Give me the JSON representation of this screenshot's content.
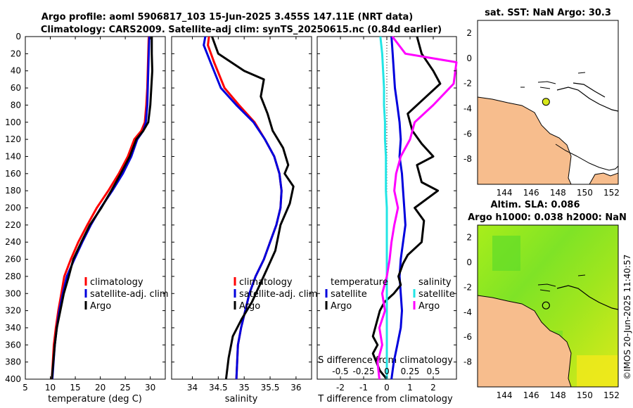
{
  "header": {
    "title_line1": "Argo profile: aoml 5906817_103 15-Jun-2025 3.455S 147.11E (NRT data)",
    "title_line2": "Climatology: CARS2009. Satellite-adj clim: synTS_20250615.nc (0.84d earlier)"
  },
  "credit": "©IMOS 20-Jun-2025 11:40:57",
  "colors": {
    "red": "#ff0000",
    "blue": "#0000dd",
    "black": "#000000",
    "cyan": "#22e5e5",
    "magenta": "#ff00ff",
    "land": "#f7bd8d",
    "sea_map": "#ffffff"
  },
  "chart_data": [
    {
      "type": "line",
      "name": "temperature",
      "xlabel": "temperature (deg C)",
      "ylabel": "",
      "xlim": [
        5,
        33
      ],
      "ylim": [
        400,
        0
      ],
      "xticks": [
        5,
        10,
        15,
        20,
        25,
        30
      ],
      "yticks": [
        0,
        20,
        40,
        60,
        80,
        100,
        120,
        140,
        160,
        180,
        200,
        220,
        240,
        260,
        280,
        300,
        320,
        340,
        360,
        380,
        400
      ],
      "legend": [
        "climatology",
        "satellite-adj. clim",
        "Argo"
      ],
      "series": [
        {
          "name": "climatology",
          "color": "red",
          "x": [
            29.7,
            29.6,
            29.5,
            29.4,
            29.2,
            28.9,
            28.2,
            26.8,
            25.5,
            23.7,
            21.6,
            19.3,
            17.4,
            15.6,
            14.1,
            12.8,
            12.2,
            11.6,
            11.1,
            10.7,
            10.3
          ],
          "y": [
            0,
            20,
            40,
            60,
            80,
            100,
            110,
            120,
            140,
            160,
            180,
            200,
            220,
            240,
            260,
            280,
            300,
            320,
            340,
            360,
            400
          ]
        },
        {
          "name": "satellite-adj. clim",
          "color": "blue",
          "x": [
            29.8,
            29.7,
            29.6,
            29.5,
            29.4,
            29.1,
            28.6,
            27.4,
            26.2,
            24.5,
            22.4,
            20.1,
            18.1,
            16.4,
            14.8,
            13.3,
            12.5,
            11.8,
            11.3,
            10.9,
            10.4
          ],
          "y": [
            0,
            20,
            40,
            60,
            80,
            100,
            110,
            120,
            140,
            160,
            180,
            200,
            220,
            240,
            260,
            280,
            300,
            320,
            340,
            360,
            400
          ]
        },
        {
          "name": "Argo",
          "color": "black",
          "x": [
            30.3,
            30.3,
            30.4,
            30.2,
            30.0,
            29.6,
            28.6,
            27.2,
            25.9,
            24.1,
            22.2,
            20.2,
            17.9,
            16.2,
            14.6,
            13.7,
            12.7,
            12.0,
            11.3,
            10.9,
            10.3
          ],
          "y": [
            0,
            20,
            40,
            60,
            80,
            100,
            110,
            120,
            140,
            160,
            180,
            200,
            220,
            240,
            260,
            280,
            300,
            320,
            340,
            360,
            400
          ]
        }
      ]
    },
    {
      "type": "line",
      "name": "salinity",
      "xlabel": "salinity",
      "xlim": [
        33.6,
        36.3
      ],
      "ylim": [
        400,
        0
      ],
      "xticks": [
        34,
        34.5,
        35,
        35.5,
        36
      ],
      "xticklabels": [
        "34",
        "34.5",
        "35",
        "35.5",
        "36"
      ],
      "legend": [
        "climatology",
        "satellite-adj. clim",
        "Argo"
      ],
      "series": [
        {
          "name": "climatology",
          "color": "red",
          "x": [
            34.32,
            34.3,
            34.42,
            34.62,
            34.9,
            35.2,
            35.4,
            35.58,
            35.68,
            35.72,
            35.7,
            35.62,
            35.5,
            35.38,
            35.22,
            35.1,
            35.02,
            34.94,
            34.88,
            34.85
          ],
          "y": [
            0,
            10,
            30,
            60,
            80,
            100,
            120,
            140,
            160,
            180,
            200,
            220,
            240,
            260,
            280,
            300,
            320,
            340,
            360,
            400
          ]
        },
        {
          "name": "satellite-adj. clim",
          "color": "blue",
          "x": [
            34.25,
            34.22,
            34.35,
            34.55,
            34.85,
            35.18,
            35.4,
            35.58,
            35.68,
            35.72,
            35.7,
            35.62,
            35.5,
            35.38,
            35.22,
            35.1,
            35.02,
            34.94,
            34.88,
            34.85
          ],
          "y": [
            0,
            10,
            30,
            60,
            80,
            100,
            120,
            140,
            160,
            180,
            200,
            220,
            240,
            260,
            280,
            300,
            320,
            340,
            360,
            400
          ]
        },
        {
          "name": "Argo",
          "color": "black",
          "x": [
            34.38,
            34.5,
            35.0,
            35.38,
            35.32,
            35.45,
            35.55,
            35.75,
            35.85,
            35.78,
            35.95,
            35.88,
            35.7,
            35.6,
            35.45,
            35.3,
            35.15,
            34.95,
            34.78,
            34.7,
            34.65
          ],
          "y": [
            0,
            20,
            40,
            50,
            70,
            90,
            110,
            130,
            150,
            160,
            175,
            195,
            220,
            250,
            270,
            290,
            310,
            330,
            350,
            375,
            400
          ]
        }
      ]
    },
    {
      "type": "line",
      "name": "difference",
      "xlabel": "T difference from climatology",
      "top_axis_label": "S difference from climatology",
      "xlim": [
        -3,
        3
      ],
      "ylim": [
        400,
        0
      ],
      "xticks": [
        -2,
        -1,
        0,
        1,
        2
      ],
      "xticklabels": [
        "-2",
        "-1",
        "0",
        "1",
        "2"
      ],
      "top_xticks": [
        -0.5,
        -0.25,
        0,
        0.25,
        0.5
      ],
      "top_xticklabels": [
        "-0.5",
        "-0.25",
        "0",
        "0.25",
        "0.5"
      ],
      "top_xlim": [
        -0.75,
        0.75
      ],
      "legend_temperature_title": "temperature",
      "legend_salinity_title": "salinity",
      "legend_temperature": [
        "satellite",
        "Argo"
      ],
      "legend_salinity": [
        "satellite",
        "Argo"
      ],
      "series": [
        {
          "name": "T satellite",
          "color": "blue",
          "axis": "T",
          "x": [
            0.2,
            0.25,
            0.3,
            0.35,
            0.45,
            0.55,
            0.6,
            0.55,
            0.65,
            0.7,
            0.75,
            0.8,
            0.7,
            0.6,
            0.55,
            0.6,
            0.65,
            0.6,
            0.45,
            0.3,
            0.2
          ],
          "y": [
            0,
            20,
            40,
            60,
            80,
            100,
            120,
            140,
            160,
            180,
            200,
            220,
            240,
            260,
            280,
            300,
            320,
            340,
            360,
            380,
            400
          ]
        },
        {
          "name": "T Argo",
          "color": "black",
          "axis": "T",
          "x": [
            1.3,
            1.5,
            2.0,
            2.3,
            1.5,
            0.9,
            1.1,
            1.5,
            2.0,
            1.3,
            1.5,
            2.2,
            1.2,
            1.6,
            1.5,
            0.9,
            0.7,
            0.5,
            0.6,
            0.3,
            -0.1,
            -0.3,
            -0.5,
            -0.6,
            -0.4,
            -0.6,
            -0.3,
            0.0
          ],
          "y": [
            0,
            20,
            40,
            55,
            75,
            90,
            110,
            125,
            140,
            150,
            170,
            180,
            200,
            215,
            240,
            255,
            265,
            280,
            290,
            300,
            310,
            320,
            340,
            350,
            360,
            370,
            390,
            400
          ]
        },
        {
          "name": "S satellite",
          "color": "cyan",
          "axis": "S",
          "x": [
            -0.07,
            -0.05,
            -0.04,
            -0.03,
            -0.03,
            -0.02,
            -0.02,
            -0.01,
            -0.01,
            -0.01,
            0.0,
            0.0,
            0.0,
            0.0,
            0.0,
            0.0,
            0.0,
            0.0,
            0.0,
            0.0,
            0.0
          ],
          "y": [
            0,
            20,
            40,
            60,
            80,
            100,
            120,
            140,
            160,
            180,
            200,
            220,
            240,
            260,
            280,
            300,
            320,
            340,
            360,
            380,
            400
          ]
        },
        {
          "name": "S Argo",
          "color": "magenta",
          "axis": "S",
          "x": [
            0.06,
            0.2,
            0.75,
            0.72,
            0.5,
            0.3,
            0.25,
            0.15,
            0.1,
            0.08,
            0.12,
            0.08,
            0.05,
            0.03,
            0.0,
            -0.05,
            -0.02,
            -0.08,
            -0.05,
            -0.1,
            -0.08
          ],
          "y": [
            0,
            20,
            30,
            55,
            80,
            100,
            120,
            140,
            160,
            180,
            200,
            220,
            240,
            260,
            280,
            300,
            320,
            340,
            360,
            380,
            400
          ]
        }
      ]
    },
    {
      "type": "map",
      "name": "sst_map",
      "title": "sat. SST: NaN Argo: 30.3",
      "xlim": [
        142,
        152.5
      ],
      "ylim": [
        -10,
        3
      ],
      "xticks": [
        144,
        146,
        148,
        150,
        152
      ],
      "yticks": [
        2,
        0,
        -2,
        -4,
        -6,
        -8
      ],
      "float": {
        "lon": 147.11,
        "lat": -3.455,
        "color": "#d7e81a"
      }
    },
    {
      "type": "map",
      "name": "sla_map",
      "title_line1": "Altim. SLA: 0.086",
      "title_line2": "Argo h1000: 0.038 h2000: NaN",
      "xlim": [
        142,
        152.5
      ],
      "ylim": [
        -10,
        3
      ],
      "xticks": [
        144,
        146,
        148,
        150,
        152
      ],
      "yticks": [
        2,
        0,
        -2,
        -4,
        -6,
        -8
      ],
      "float": {
        "lon": 147.11,
        "lat": -3.455
      }
    }
  ]
}
